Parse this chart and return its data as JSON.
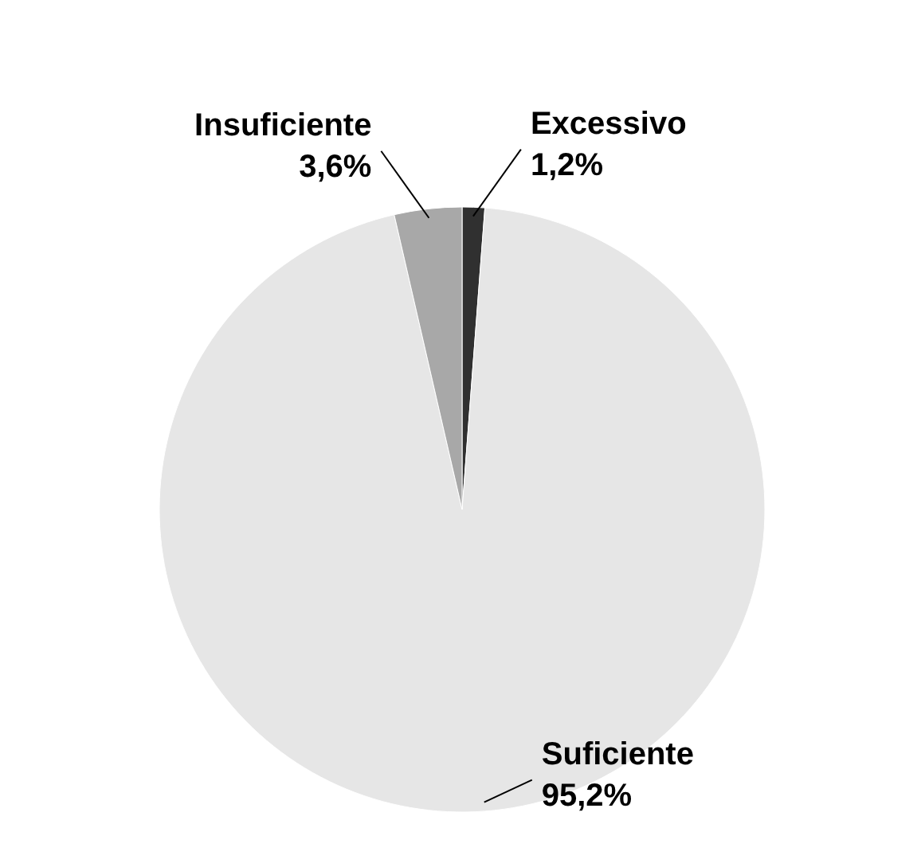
{
  "chart_data": {
    "type": "pie",
    "categories": [
      "Excessivo",
      "Suficiente",
      "Insuficiente"
    ],
    "values": [
      1.2,
      95.2,
      3.6
    ],
    "colors": [
      "#303030",
      "#e6e6e6",
      "#a8a8a8"
    ],
    "value_labels": [
      "1,2%",
      "95,2%",
      "3,6%"
    ]
  }
}
